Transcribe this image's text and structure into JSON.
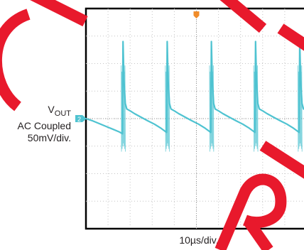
{
  "chart_data": {
    "type": "line",
    "title": "",
    "x_label": "10µs/div.",
    "y_label": {
      "main": "V",
      "subscript": "OUT",
      "line2": "AC Coupled",
      "line3": "50mV/div."
    },
    "grid": true,
    "x_divisions": 10,
    "y_divisions": 8,
    "xlim": [
      0,
      10
    ],
    "ylim": [
      -4,
      4
    ],
    "units": {
      "x": "div (10µs/div)",
      "y": "div (50mV/div)"
    },
    "trace_color": "#4fc3d1",
    "trigger_marker_color": "#f08c2a",
    "ground_marker_label": "2",
    "series": [
      {
        "values_x": [
          0.0,
          0.3,
          0.6,
          0.9,
          1.2,
          1.5,
          1.65,
          1.68,
          1.72,
          1.78,
          1.85,
          2.0,
          2.2,
          2.5,
          2.8,
          3.1,
          3.4,
          3.65,
          3.68,
          3.72,
          3.78,
          3.85,
          4.0,
          4.2,
          4.5,
          4.8,
          5.1,
          5.4,
          5.65,
          5.68,
          5.72,
          5.78,
          5.85,
          6.0,
          6.2,
          6.5,
          6.8,
          7.1,
          7.4,
          7.65,
          7.68,
          7.72,
          7.78,
          7.85,
          8.0,
          8.2,
          8.5,
          8.8,
          9.1,
          9.4,
          9.65,
          9.68,
          9.72,
          9.78,
          9.85,
          10.0
        ],
        "values_y": [
          0.0,
          -0.08,
          -0.18,
          -0.28,
          -0.38,
          -0.48,
          -0.55,
          2.8,
          1.4,
          0.55,
          0.35,
          0.28,
          0.18,
          0.05,
          -0.08,
          -0.2,
          -0.35,
          -0.5,
          2.8,
          1.4,
          0.55,
          0.35,
          0.28,
          0.18,
          0.05,
          -0.08,
          -0.2,
          -0.35,
          -0.5,
          2.8,
          1.4,
          0.55,
          0.35,
          0.28,
          0.18,
          0.05,
          -0.08,
          -0.2,
          -0.35,
          -0.5,
          2.8,
          1.4,
          0.55,
          0.35,
          0.28,
          0.18,
          0.05,
          -0.08,
          -0.2,
          -0.35,
          -0.5,
          2.8,
          1.4,
          0.55,
          0.35,
          0.3
        ]
      }
    ]
  }
}
